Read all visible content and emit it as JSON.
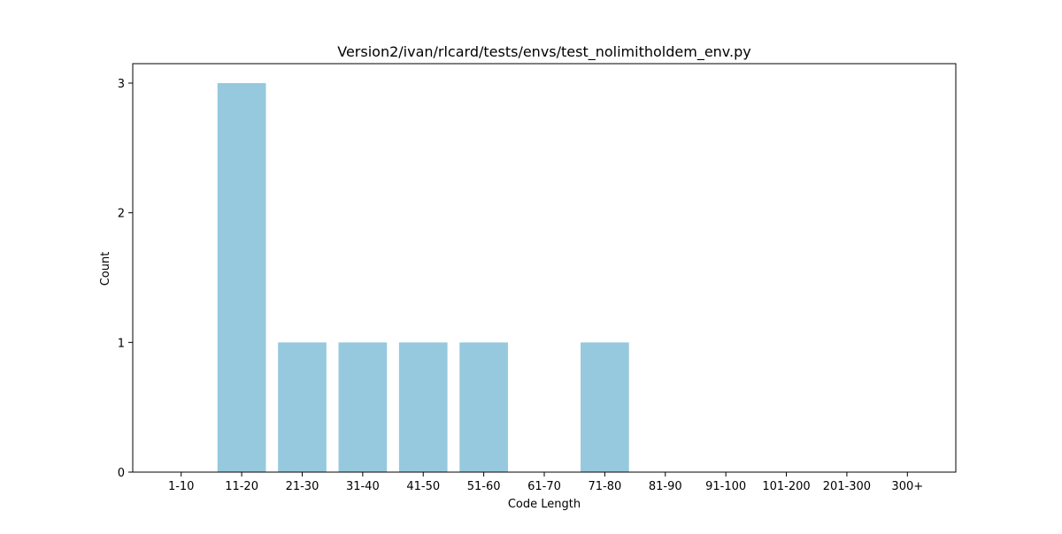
{
  "chart_data": {
    "type": "bar",
    "title": "Version2/ivan/rlcard/tests/envs/test_nolimitholdem_env.py",
    "xlabel": "Code Length",
    "ylabel": "Count",
    "categories": [
      "1-10",
      "11-20",
      "21-30",
      "31-40",
      "41-50",
      "51-60",
      "61-70",
      "71-80",
      "81-90",
      "91-100",
      "101-200",
      "201-300",
      "300+"
    ],
    "values": [
      0,
      3,
      1,
      1,
      1,
      1,
      0,
      1,
      0,
      0,
      0,
      0,
      0
    ],
    "ylim": [
      0,
      3.15
    ],
    "yticks": [
      "0",
      "1",
      "2",
      "3"
    ],
    "bar_color": "#96c9dd",
    "grid": false,
    "legend": "none"
  }
}
